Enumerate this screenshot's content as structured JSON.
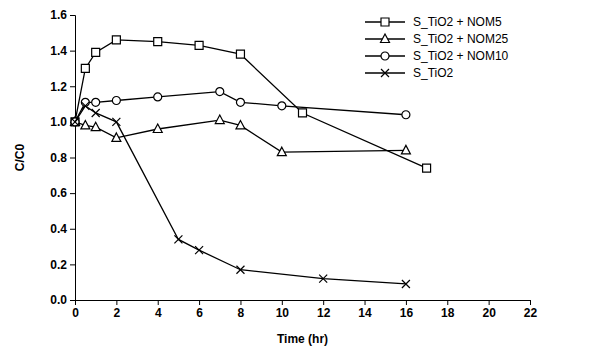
{
  "chart_data": {
    "type": "line",
    "x_label": "Time (hr)",
    "y_label": "C/C0",
    "xlim": [
      0,
      22
    ],
    "xticks": [
      0,
      2,
      4,
      6,
      8,
      10,
      12,
      14,
      16,
      18,
      20,
      22
    ],
    "ylim": [
      0,
      1.6
    ],
    "yticks": [
      {
        "value": 0,
        "label": "0.0"
      },
      0.2,
      0.4,
      0.6,
      0.8,
      {
        "value": 1,
        "label": "1.0"
      },
      1.2,
      1.4,
      1.6
    ],
    "grid": false,
    "legend": "top-right",
    "series": [
      {
        "name": "S_TiO2 + NOM5",
        "color": "#000000",
        "marker": "square",
        "line_style": "solid",
        "x": [
          0,
          0.5,
          1,
          2,
          4,
          6,
          8,
          11,
          17
        ],
        "values": [
          1.0,
          1.3,
          1.39,
          1.46,
          1.45,
          1.43,
          1.38,
          1.05,
          0.74
        ]
      },
      {
        "name": "S_TiO2 + NOM25",
        "color": "#000000",
        "marker": "triangle",
        "line_style": "solid",
        "x": [
          0,
          0.5,
          1,
          2,
          4,
          7,
          8,
          10,
          16
        ],
        "values": [
          1.0,
          0.98,
          0.97,
          0.91,
          0.96,
          1.01,
          0.98,
          0.83,
          0.84
        ]
      },
      {
        "name": "S_TiO2 + NOM10",
        "color": "#000000",
        "marker": "circle",
        "line_style": "solid",
        "x": [
          0,
          0.5,
          1,
          2,
          4,
          7,
          8,
          10,
          16
        ],
        "values": [
          1.0,
          1.11,
          1.11,
          1.12,
          1.14,
          1.17,
          1.11,
          1.09,
          1.04
        ]
      },
      {
        "name": "S_TiO2",
        "color": "#000000",
        "marker": "x",
        "line_style": "solid",
        "x": [
          0,
          0.5,
          1,
          2,
          5,
          6,
          8,
          12,
          16
        ],
        "values": [
          1.0,
          1.09,
          1.05,
          1.0,
          0.34,
          0.28,
          0.17,
          0.12,
          0.09
        ]
      }
    ]
  }
}
